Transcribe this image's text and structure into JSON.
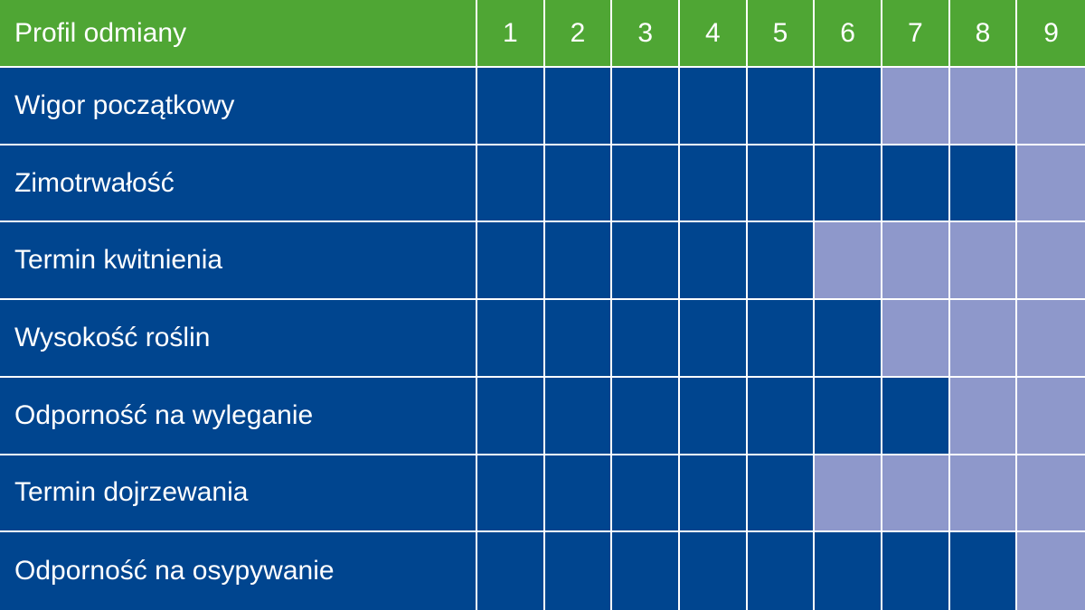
{
  "colors": {
    "header_bg": "#4fa634",
    "filled": "#00458f",
    "empty": "#8e98cb",
    "text": "#ffffff"
  },
  "chart_data": {
    "type": "table",
    "header_label": "Profil odmiany",
    "scale": [
      "1",
      "2",
      "3",
      "4",
      "5",
      "6",
      "7",
      "8",
      "9"
    ],
    "xlim": [
      1,
      9
    ],
    "rows": [
      {
        "label": "Wigor początkowy",
        "value": 6
      },
      {
        "label": "Zimotrwałość",
        "value": 8
      },
      {
        "label": "Termin kwitnienia",
        "value": 5
      },
      {
        "label": "Wysokość roślin",
        "value": 6
      },
      {
        "label": "Odporność na wyleganie",
        "value": 7
      },
      {
        "label": "Termin dojrzewania",
        "value": 5
      },
      {
        "label": "Odporność na osypywanie",
        "value": 8
      }
    ]
  }
}
